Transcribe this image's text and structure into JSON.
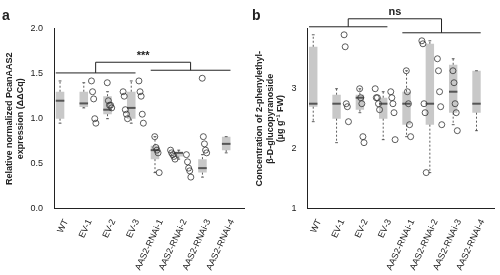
{
  "chart_data": [
    {
      "type": "box",
      "panel_label": "a",
      "y_label": [
        "Relative normalized PcanAAS2",
        "expression (ΔΔCq)"
      ],
      "categories": [
        "WT",
        "EV-1",
        "EV-2",
        "EV-3",
        "AAS2-RNAi-1",
        "AAS2-RNAi-2",
        "AAS2-RNAi-3",
        "AAS2-RNAi-4"
      ],
      "ylim": [
        0,
        2
      ],
      "yticks": [
        {
          "value": 0,
          "label": "0.0"
        },
        {
          "value": 0.5,
          "label": "0.5"
        },
        {
          "value": 1,
          "label": "1.0"
        },
        {
          "value": 1.5,
          "label": "1.5"
        },
        {
          "value": 2,
          "label": "2.0"
        }
      ],
      "grid": false,
      "color": "#c8c8c8",
      "boxes": [
        {
          "q1": 1.0,
          "median": 1.2,
          "q3": 1.3,
          "low": 0.95,
          "high": 1.42,
          "points": [
            1.42,
            1.3,
            1.22,
            1.0,
            0.95
          ]
        },
        {
          "q1": 1.13,
          "median": 1.17,
          "q3": 1.3,
          "low": 1.12,
          "high": 1.4,
          "points": [
            1.4,
            1.2,
            1.15,
            1.15,
            1.12
          ]
        },
        {
          "q1": 1.05,
          "median": 1.1,
          "q3": 1.25,
          "low": 1.0,
          "high": 1.3,
          "points": [
            1.3,
            1.25,
            1.1,
            1.05,
            1.0
          ]
        },
        {
          "q1": 1.0,
          "median": 1.12,
          "q3": 1.3,
          "low": 0.95,
          "high": 1.42,
          "points": [
            1.42,
            1.3,
            1.25,
            1.05,
            0.95
          ]
        },
        {
          "q1": 0.55,
          "median": 0.65,
          "q3": 0.7,
          "low": 0.4,
          "high": 0.8,
          "points": [
            0.8,
            0.68,
            0.65,
            0.62,
            0.4
          ]
        },
        {
          "q1": 0.58,
          "median": 0.62,
          "q3": 0.63,
          "low": 0.55,
          "high": 0.65,
          "points": [
            0.65,
            0.62,
            0.6,
            0.58,
            0.55
          ]
        },
        {
          "q1": 0.4,
          "median": 0.45,
          "q3": 0.55,
          "low": 0.35,
          "high": 0.6,
          "points": [
            0.6,
            0.52,
            0.45,
            0.42,
            0.35
          ]
        },
        {
          "q1": 0.65,
          "median": 0.72,
          "q3": 0.8,
          "low": 0.62,
          "high": 0.8,
          "points": [
            1.45,
            0.8,
            0.72,
            0.65,
            0.62
          ]
        }
      ],
      "annotations": [
        {
          "text": "***",
          "groups": [
            [
              "WT",
              "EV-1",
              "EV-2",
              "EV-3"
            ],
            [
              "AAS2-RNAi-1",
              "AAS2-RNAi-2",
              "AAS2-RNAi-3",
              "AAS2-RNAi-4"
            ]
          ]
        }
      ]
    },
    {
      "type": "box",
      "panel_label": "b",
      "y_label": [
        "Concentration of 2-phenylethyl-",
        "β-D-glucopyranoside",
        "(µg g⁻¹ FW)"
      ],
      "categories": [
        "WT",
        "EV-1",
        "EV-2",
        "EV-3",
        "AAS2-RNAi-1",
        "AAS2-RNAi-2",
        "AAS2-RNAi-3",
        "AAS2-RNAi-4"
      ],
      "ylim": [
        1,
        4
      ],
      "yticks": [
        1,
        2,
        3
      ],
      "grid": false,
      "color": "#c8c8c8",
      "boxes": [
        {
          "q1": 2.7,
          "median": 2.75,
          "q3": 3.7,
          "low": 2.45,
          "high": 3.9,
          "points": [
            3.9,
            3.7,
            2.75,
            2.7,
            2.45
          ]
        },
        {
          "q1": 2.5,
          "median": 2.75,
          "q3": 2.9,
          "low": 2.1,
          "high": 3.0,
          "points": [
            3.0,
            2.85,
            2.75,
            2.2,
            2.1
          ]
        },
        {
          "q1": 2.65,
          "median": 2.85,
          "q3": 2.9,
          "low": 2.6,
          "high": 3.0,
          "points": [
            3.0,
            2.85,
            2.85,
            2.75,
            2.65
          ]
        },
        {
          "q1": 2.5,
          "median": 2.75,
          "q3": 2.85,
          "low": 2.15,
          "high": 2.95,
          "points": [
            2.95,
            2.85,
            2.75,
            2.6,
            2.15
          ]
        },
        {
          "q1": 2.4,
          "median": 2.75,
          "q3": 2.95,
          "low": 2.2,
          "high": 3.3,
          "points": [
            3.3,
            2.95,
            2.75,
            2.4,
            2.2
          ]
        },
        {
          "q1": 2.4,
          "median": 2.75,
          "q3": 3.75,
          "low": 1.6,
          "high": 3.8,
          "points": [
            3.8,
            3.75,
            2.75,
            2.6,
            1.6
          ]
        },
        {
          "q1": 2.6,
          "median": 2.95,
          "q3": 3.4,
          "low": 2.4,
          "high": 3.5,
          "points": [
            3.5,
            3.3,
            2.95,
            2.7,
            2.4
          ]
        },
        {
          "q1": 2.6,
          "median": 2.75,
          "q3": 3.3,
          "low": 2.3,
          "high": 3.3,
          "points": [
            3.3,
            3.1,
            2.75,
            2.6,
            2.3
          ]
        }
      ],
      "annotations": [
        {
          "text": "ns",
          "groups": [
            [
              "WT",
              "EV-1",
              "EV-2",
              "EV-3"
            ],
            [
              "AAS2-RNAi-1",
              "AAS2-RNAi-2",
              "AAS2-RNAi-3",
              "AAS2-RNAi-4"
            ]
          ]
        }
      ]
    }
  ]
}
